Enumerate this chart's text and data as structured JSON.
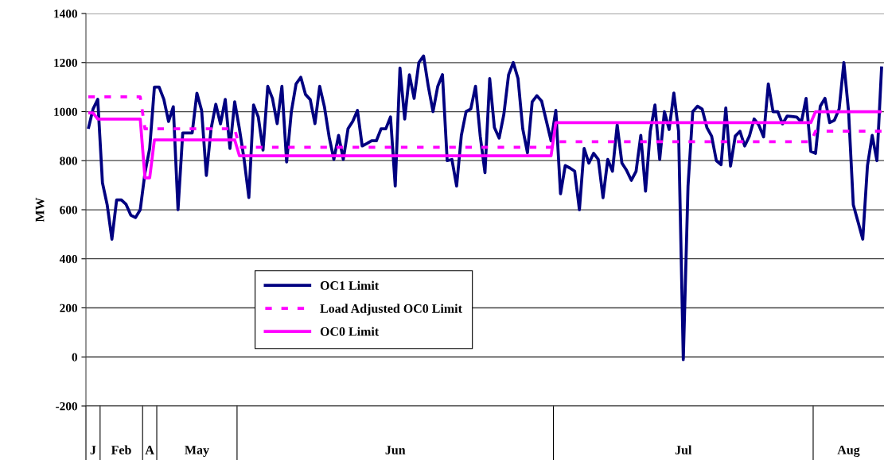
{
  "chart_data": {
    "type": "line",
    "ylabel": "MW",
    "categories": [
      null,
      "J",
      null,
      null,
      null,
      null,
      null,
      "Feb",
      null,
      null,
      null,
      null,
      null,
      "A",
      null,
      null,
      null,
      null,
      null,
      null,
      null,
      null,
      null,
      "May",
      null,
      null,
      null,
      null,
      null,
      null,
      null,
      null,
      null,
      null,
      null,
      null,
      null,
      null,
      null,
      null,
      null,
      null,
      null,
      null,
      null,
      null,
      null,
      null,
      null,
      null,
      null,
      null,
      null,
      null,
      null,
      null,
      null,
      null,
      null,
      null,
      null,
      null,
      null,
      null,
      null,
      "Jun",
      null,
      null,
      null,
      null,
      null,
      null,
      null,
      null,
      null,
      null,
      null,
      null,
      null,
      null,
      null,
      null,
      null,
      null,
      null,
      null,
      null,
      null,
      null,
      null,
      null,
      null,
      null,
      null,
      null,
      null,
      null,
      null,
      null,
      null,
      null,
      null,
      null,
      null,
      null,
      null,
      null,
      null,
      null,
      null,
      null,
      null,
      null,
      null,
      null,
      null,
      null,
      null,
      null,
      null,
      null,
      null,
      null,
      null,
      null,
      null,
      "Jul",
      null,
      null,
      null,
      null,
      null,
      null,
      null,
      null,
      null,
      null,
      null,
      null,
      null,
      null,
      null,
      null,
      null,
      null,
      null,
      null,
      null,
      null,
      null,
      null,
      null,
      null,
      null,
      null,
      null,
      null,
      null,
      null,
      null,
      null,
      "Aug",
      null,
      null,
      null,
      null,
      null,
      null,
      null
    ],
    "series": [
      {
        "name": "OC1 Limit",
        "color": "#000080",
        "line_style": "solid",
        "values": [
          930,
          1010,
          1050,
          710,
          620,
          480,
          640,
          640,
          622,
          578,
          568,
          600,
          750,
          850,
          1100,
          1100,
          1050,
          960,
          1020,
          600,
          913,
          913,
          913,
          1075,
          1005,
          740,
          930,
          1030,
          950,
          1050,
          850,
          1040,
          930,
          805,
          650,
          1027,
          978,
          843,
          1103,
          1054,
          951,
          1103,
          795,
          1000,
          1113,
          1140,
          1070,
          1049,
          951,
          1103,
          1020,
          897,
          805,
          903,
          805,
          930,
          960,
          1005,
          860,
          870,
          881,
          881,
          930,
          930,
          978,
          697,
          1178,
          970,
          1150,
          1054,
          1200,
          1227,
          1103,
          1000,
          1103,
          1151,
          800,
          805,
          697,
          903,
          1000,
          1011,
          1103,
          900,
          751,
          1135,
          935,
          892,
          989,
          1150,
          1200,
          1135,
          930,
          832,
          1040,
          1065,
          1043,
          962,
          881,
          1005,
          665,
          780,
          770,
          757,
          600,
          850,
          790,
          830,
          805,
          649,
          805,
          757,
          946,
          790,
          760,
          720,
          757,
          903,
          676,
          919,
          1027,
          805,
          1000,
          927,
          1076,
          920,
          -11,
          697,
          1000,
          1022,
          1010,
          935,
          900,
          800,
          784,
          1015,
          778,
          900,
          920,
          860,
          900,
          970,
          945,
          897,
          1113,
          1000,
          1000,
          950,
          982,
          980,
          978,
          957,
          1054,
          838,
          830,
          1022,
          1054,
          955,
          965,
          1011,
          1200,
          1000,
          620,
          551,
          480,
          780,
          903,
          800,
          1184
        ]
      },
      {
        "name": "Load Adjusted OC0 Limit",
        "color": "#ff00ff",
        "line_style": "dashed",
        "values": [
          1060,
          1060,
          1060,
          1060,
          1060,
          1060,
          1060,
          1060,
          1060,
          1060,
          1060,
          1060,
          930,
          930,
          930,
          930,
          930,
          930,
          930,
          930,
          930,
          930,
          930,
          930,
          930,
          930,
          930,
          930,
          930,
          930,
          930,
          930,
          855,
          855,
          855,
          855,
          855,
          855,
          855,
          855,
          855,
          855,
          855,
          855,
          855,
          855,
          855,
          855,
          855,
          855,
          855,
          855,
          855,
          855,
          855,
          855,
          855,
          855,
          855,
          855,
          855,
          855,
          855,
          855,
          855,
          855,
          855,
          855,
          855,
          855,
          855,
          855,
          855,
          855,
          855,
          855,
          855,
          855,
          855,
          855,
          855,
          855,
          855,
          855,
          855,
          855,
          855,
          855,
          855,
          855,
          855,
          855,
          855,
          855,
          855,
          855,
          855,
          855,
          855,
          877,
          877,
          877,
          877,
          877,
          877,
          877,
          877,
          877,
          877,
          877,
          877,
          877,
          877,
          877,
          877,
          877,
          877,
          877,
          877,
          877,
          877,
          877,
          877,
          877,
          877,
          877,
          877,
          877,
          877,
          877,
          877,
          877,
          877,
          877,
          877,
          877,
          877,
          877,
          877,
          877,
          877,
          877,
          877,
          877,
          877,
          877,
          877,
          877,
          877,
          877,
          877,
          877,
          877,
          877,
          920,
          920,
          920,
          920,
          920,
          920,
          920,
          920,
          920,
          920,
          920,
          920,
          920,
          920,
          920
        ]
      },
      {
        "name": "OC0 Limit",
        "color": "#ff00ff",
        "line_style": "solid",
        "values": [
          995,
          995,
          970,
          970,
          970,
          970,
          970,
          970,
          970,
          970,
          970,
          970,
          730,
          730,
          885,
          885,
          885,
          885,
          885,
          885,
          885,
          885,
          885,
          885,
          885,
          885,
          885,
          885,
          885,
          885,
          885,
          885,
          820,
          820,
          820,
          820,
          820,
          820,
          820,
          820,
          820,
          820,
          820,
          820,
          820,
          820,
          820,
          820,
          820,
          820,
          820,
          820,
          820,
          820,
          820,
          820,
          820,
          820,
          820,
          820,
          820,
          820,
          820,
          820,
          820,
          820,
          820,
          820,
          820,
          820,
          820,
          820,
          820,
          820,
          820,
          820,
          820,
          820,
          820,
          820,
          820,
          820,
          820,
          820,
          820,
          820,
          820,
          820,
          820,
          820,
          820,
          820,
          820,
          820,
          820,
          820,
          820,
          820,
          820,
          955,
          955,
          955,
          955,
          955,
          955,
          955,
          955,
          955,
          955,
          955,
          955,
          955,
          955,
          955,
          955,
          955,
          955,
          955,
          955,
          955,
          955,
          955,
          955,
          955,
          955,
          955,
          955,
          955,
          955,
          955,
          955,
          955,
          955,
          955,
          955,
          955,
          955,
          955,
          955,
          955,
          955,
          955,
          955,
          955,
          955,
          955,
          955,
          955,
          955,
          955,
          955,
          955,
          955,
          955,
          1000,
          1000,
          1000,
          1000,
          1000,
          1000,
          1000,
          1000,
          1000,
          1000,
          1000,
          1000,
          1000,
          1000,
          1000
        ]
      }
    ],
    "ylim": [
      -200,
      1400
    ],
    "yticks": [
      -200,
      0,
      200,
      400,
      600,
      800,
      1000,
      1200,
      1400
    ],
    "grid": "y",
    "legend": "bottom left",
    "marker": "none"
  }
}
